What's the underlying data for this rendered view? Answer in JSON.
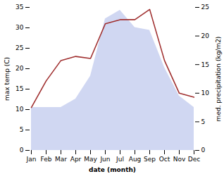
{
  "chart_data": {
    "type": "line",
    "xlabel": "date (month)",
    "ylabel": "max temp (C)",
    "y2label": "med. precipitation (kg/m2)",
    "categories": [
      "Jan",
      "Feb",
      "Mar",
      "Apr",
      "May",
      "Jun",
      "Jul",
      "Aug",
      "Sep",
      "Oct",
      "Nov",
      "Dec"
    ],
    "series": [
      {
        "type": "area",
        "axis": "y2",
        "color": "#c8d0f0",
        "values": [
          7.5,
          7.5,
          7.5,
          9.0,
          13.0,
          23.0,
          24.5,
          21.5,
          21.0,
          14.5,
          9.5,
          7.5
        ]
      },
      {
        "type": "line",
        "color": "#a03030",
        "values": [
          10.5,
          17.0,
          22.0,
          23.0,
          22.5,
          31.0,
          32.0,
          32.0,
          34.5,
          22.0,
          14.0,
          13.0
        ]
      }
    ],
    "ylim": [
      0,
      35
    ],
    "yticks": [
      0,
      5,
      10,
      15,
      20,
      25,
      30,
      35
    ],
    "y2lim": [
      0,
      25
    ],
    "y2ticks": [
      0,
      5,
      10,
      15,
      20,
      25
    ],
    "grid": false
  }
}
